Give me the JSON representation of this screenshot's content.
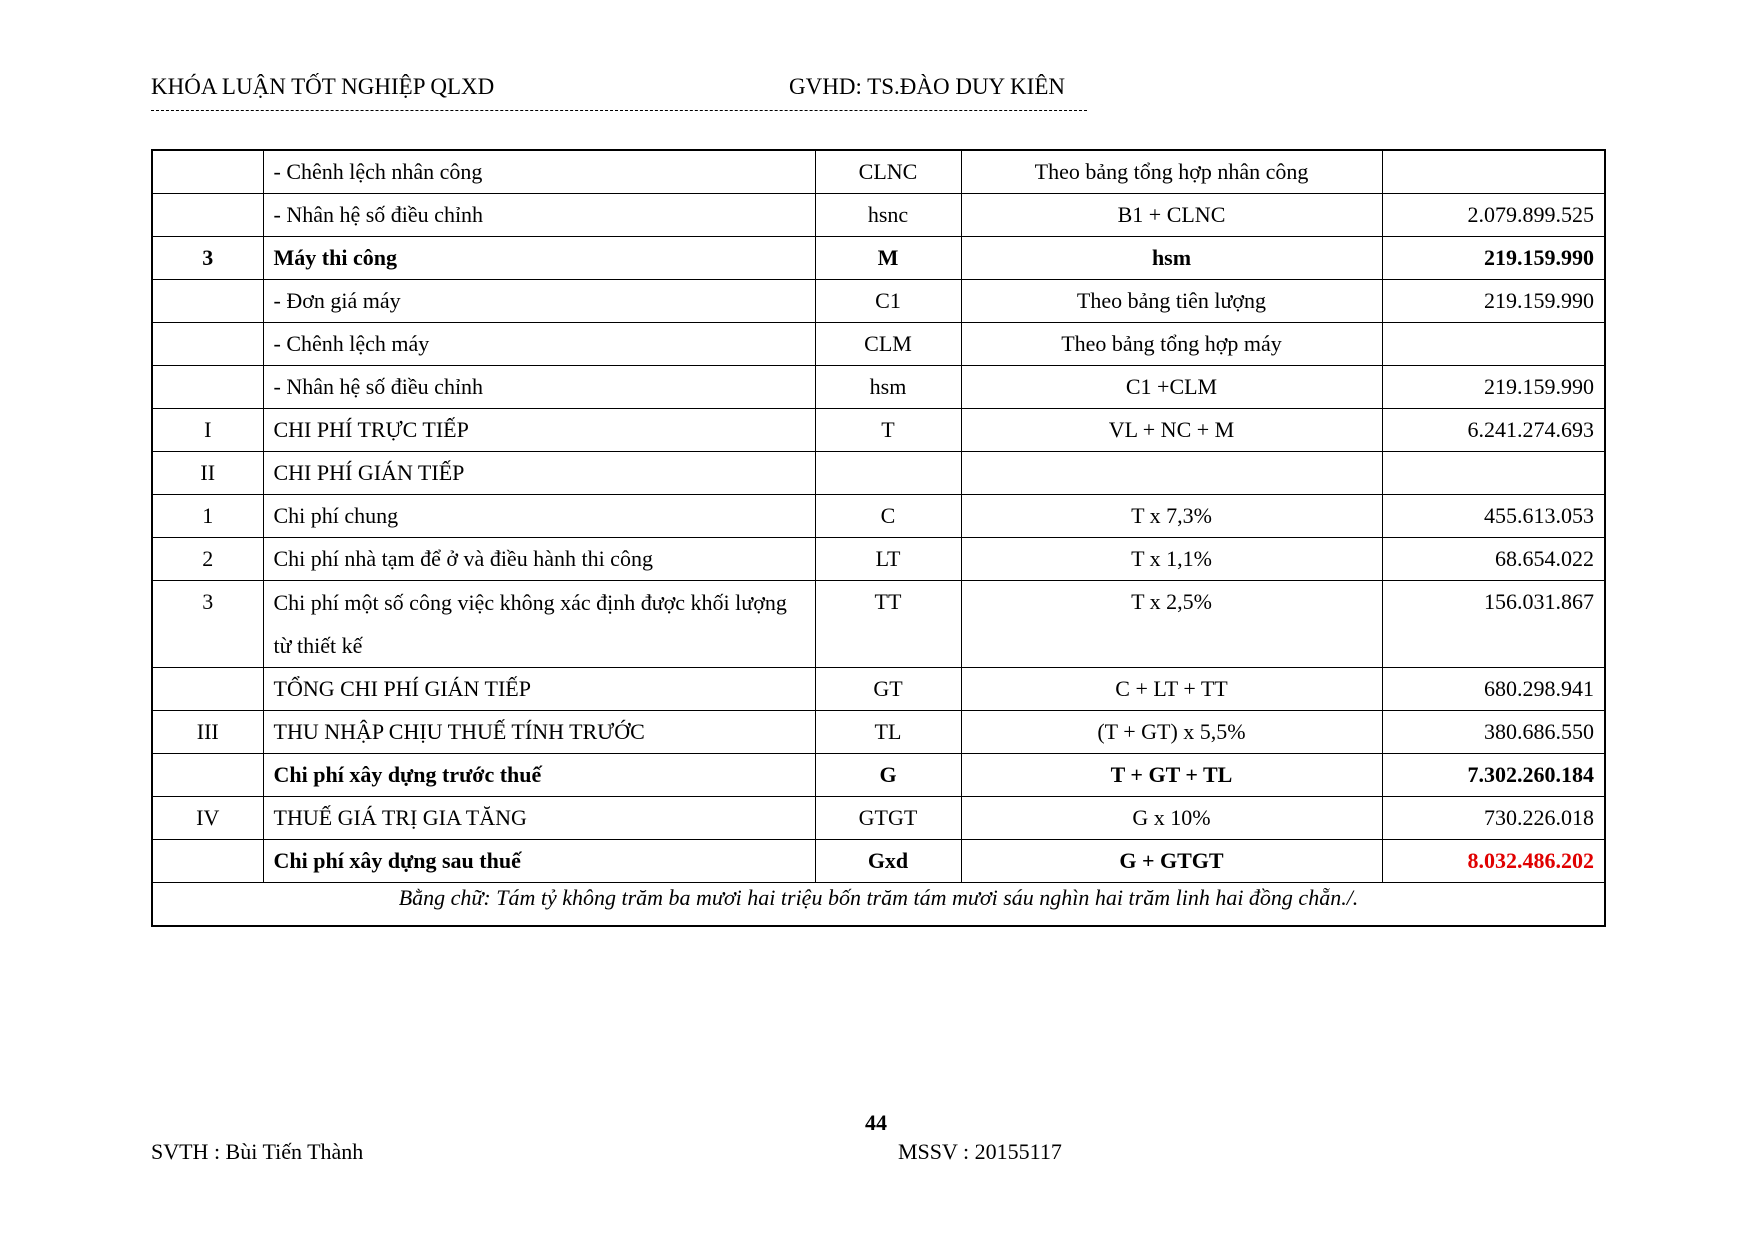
{
  "header": {
    "left": "KHÓA LUẬN TỐT NGHIỆP QLXD",
    "right": "GVHD: TS.ĐÀO DUY KIÊN"
  },
  "table": {
    "rows": [
      {
        "no": "",
        "name": "- Chênh lệch nhân công",
        "code": "CLNC",
        "formula": "Theo bảng tổng hợp nhân công",
        "value": "",
        "bold": false
      },
      {
        "no": "",
        "name": "- Nhân hệ số điều chỉnh",
        "code": "hsnc",
        "formula": "B1 + CLNC",
        "value": "2.079.899.525",
        "bold": false
      },
      {
        "no": "3",
        "name": "Máy thi công",
        "code": "M",
        "formula": "hsm",
        "value": "219.159.990",
        "bold": true
      },
      {
        "no": "",
        "name": "- Đơn giá máy",
        "code": "C1",
        "formula": "Theo bảng tiên lượng",
        "value": "219.159.990",
        "bold": false
      },
      {
        "no": "",
        "name": "- Chênh lệch máy",
        "code": "CLM",
        "formula": "Theo bảng tổng hợp máy",
        "value": "",
        "bold": false
      },
      {
        "no": "",
        "name": "- Nhân hệ số điều chỉnh",
        "code": "hsm",
        "formula": "C1 +CLM",
        "value": "219.159.990",
        "bold": false
      },
      {
        "no": "I",
        "name": "CHI PHÍ TRỰC TIẾP",
        "code": "T",
        "formula": "VL + NC + M",
        "value": "6.241.274.693",
        "bold": false
      },
      {
        "no": "II",
        "name": "CHI PHÍ GIÁN TIẾP",
        "code": "",
        "formula": "",
        "value": "",
        "bold": false
      },
      {
        "no": "1",
        "name": "Chi phí chung",
        "code": "C",
        "formula": "T x 7,3%",
        "value": "455.613.053",
        "bold": false
      },
      {
        "no": "2",
        "name": "Chi phí nhà tạm để ở và điều hành thi công",
        "code": "LT",
        "formula": "T x 1,1%",
        "value": "68.654.022",
        "bold": false
      },
      {
        "no": "3",
        "name": "Chi phí một số công việc không xác định được khối lượng từ thiết kế",
        "code": "TT",
        "formula": "T x 2,5%",
        "value": "156.031.867",
        "bold": false
      },
      {
        "no": "",
        "name": "TỔNG CHI PHÍ GIÁN TIẾP",
        "code": "GT",
        "formula": "C + LT + TT",
        "value": "680.298.941",
        "bold": false
      },
      {
        "no": "III",
        "name": "THU NHẬP CHỊU THUẾ TÍNH TRƯỚC",
        "code": "TL",
        "formula": "(T + GT) x 5,5%",
        "value": "380.686.550",
        "bold": false
      },
      {
        "no": "",
        "name": "Chi phí xây dựng trước thuế",
        "code": "G",
        "formula": "T + GT + TL",
        "value": "7.302.260.184",
        "bold": true
      },
      {
        "no": "IV",
        "name": "THUẾ GIÁ TRỊ GIA TĂNG",
        "code": "GTGT",
        "formula": "G x 10%",
        "value": "730.226.018",
        "bold": false
      },
      {
        "no": "",
        "name": "Chi phí xây dựng sau thuế",
        "code": "Gxd",
        "formula": "G + GTGT",
        "value": "8.032.486.202",
        "bold": true,
        "value_color": "#e00000"
      }
    ],
    "in_words": "Bằng chữ: Tám tỷ không trăm ba mươi hai triệu bốn trăm tám mươi sáu nghìn hai trăm linh hai đồng chẵn./."
  },
  "footer": {
    "page": "44",
    "student": "SVTH : Bùi Tiến Thành",
    "student_id": "MSSV : 20155117"
  }
}
